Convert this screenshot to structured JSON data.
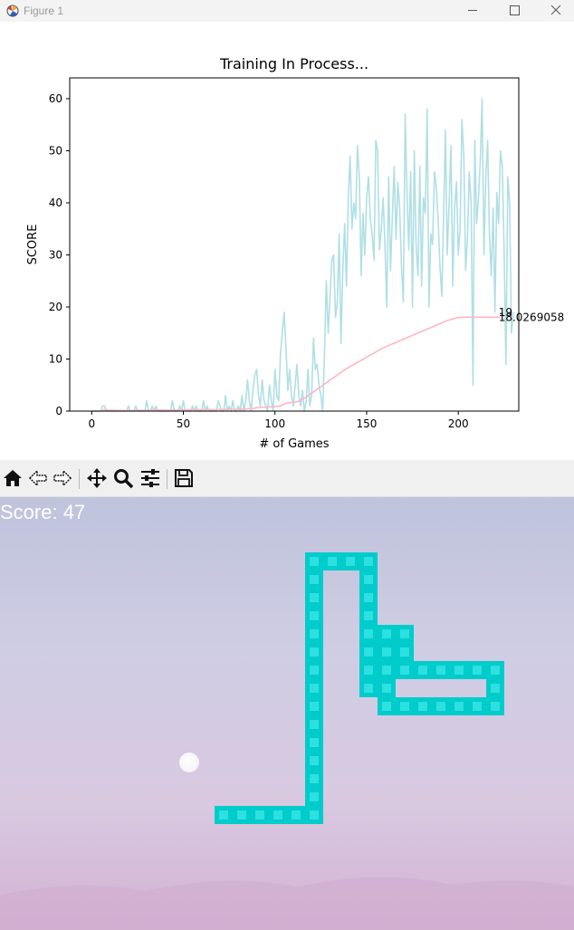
{
  "window": {
    "title": "Figure 1",
    "controls": [
      "minimize-icon",
      "maximize-icon",
      "close-icon"
    ]
  },
  "chart_data": {
    "type": "line",
    "title": "Training In Process...",
    "xlabel": "# of Games",
    "ylabel": "SCORE",
    "xlim": [
      -12,
      233
    ],
    "ylim": [
      0,
      64
    ],
    "xticks": [
      0,
      50,
      100,
      150,
      200
    ],
    "yticks": [
      0,
      10,
      20,
      30,
      40,
      50,
      60
    ],
    "grid": false,
    "legend": "none",
    "series": [
      {
        "role": "scores",
        "color": "#b0dfe5",
        "values": [
          0,
          0,
          0,
          0,
          0,
          0,
          1,
          1,
          0,
          0,
          0,
          0,
          0,
          0,
          0,
          0,
          0,
          0,
          0,
          0,
          1,
          0,
          0,
          0,
          1,
          0,
          0,
          0,
          0,
          0,
          2,
          0,
          0,
          1,
          0,
          1,
          0,
          0,
          0,
          0,
          0,
          0,
          0,
          0,
          2,
          0,
          0,
          0,
          1,
          0,
          2,
          0,
          0,
          0,
          0,
          1,
          0,
          1,
          0,
          0,
          0,
          2,
          0,
          1,
          0,
          0,
          0,
          0,
          0,
          2,
          1,
          0,
          0,
          3,
          0,
          1,
          0,
          2,
          0,
          0,
          1,
          0,
          3,
          0,
          2,
          6,
          2,
          0,
          4,
          7,
          8,
          3,
          1,
          6,
          2,
          1,
          0,
          5,
          2,
          0,
          8,
          3,
          2,
          11,
          15,
          19,
          12,
          4,
          8,
          3,
          1,
          5,
          9,
          3,
          1,
          4,
          0,
          2,
          8,
          1,
          3,
          14,
          8,
          9,
          5,
          3,
          0,
          11,
          25,
          15,
          22,
          29,
          30,
          18,
          21,
          34,
          13,
          27,
          36,
          24,
          41,
          49,
          35,
          40,
          37,
          51,
          45,
          26,
          38,
          30,
          41,
          45,
          37,
          34,
          29,
          52,
          50,
          31,
          35,
          41,
          32,
          20,
          45,
          27,
          37,
          47,
          33,
          44,
          39,
          28,
          21,
          57,
          42,
          31,
          46,
          20,
          50,
          32,
          26,
          47,
          24,
          41,
          38,
          58,
          20,
          34,
          32,
          46,
          43,
          37,
          28,
          22,
          38,
          54,
          30,
          40,
          51,
          24,
          39,
          44,
          30,
          35,
          56,
          49,
          27,
          33,
          46,
          40,
          5,
          52,
          36,
          41,
          48,
          60,
          30,
          45,
          52,
          34,
          26,
          39,
          19,
          42,
          36,
          50,
          47,
          31,
          9,
          45,
          40,
          15,
          19
        ]
      },
      {
        "role": "mean_scores",
        "color": "#ffb6c1",
        "values": [
          0,
          0,
          0,
          0,
          0,
          0,
          0.14,
          0.25,
          0.22,
          0.2,
          0.18,
          0.17,
          0.15,
          0.14,
          0.13,
          0.13,
          0.12,
          0.11,
          0.11,
          0.1,
          0.14,
          0.14,
          0.13,
          0.13,
          0.16,
          0.15,
          0.15,
          0.14,
          0.14,
          0.13,
          0.19,
          0.19,
          0.18,
          0.21,
          0.2,
          0.22,
          0.22,
          0.21,
          0.21,
          0.2,
          0.2,
          0.19,
          0.19,
          0.18,
          0.22,
          0.22,
          0.21,
          0.21,
          0.22,
          0.22,
          0.25,
          0.25,
          0.25,
          0.24,
          0.24,
          0.25,
          0.25,
          0.26,
          0.25,
          0.25,
          0.25,
          0.27,
          0.27,
          0.28,
          0.28,
          0.27,
          0.27,
          0.26,
          0.26,
          0.29,
          0.3,
          0.29,
          0.29,
          0.33,
          0.32,
          0.33,
          0.33,
          0.35,
          0.35,
          0.34,
          0.35,
          0.35,
          0.38,
          0.37,
          0.39,
          0.46,
          0.48,
          0.47,
          0.51,
          0.59,
          0.68,
          0.7,
          0.71,
          0.76,
          0.77,
          0.78,
          0.77,
          0.82,
          0.83,
          0.82,
          0.9,
          0.92,
          0.93,
          1.05,
          1.2,
          1.38,
          1.5,
          1.54,
          1.6,
          1.65,
          1.68,
          1.73,
          1.8,
          1.9,
          2.1,
          2.3,
          2.5,
          2.7,
          2.95,
          3.2,
          3.45,
          3.7,
          3.95,
          4.2,
          4.45,
          4.7,
          4.95,
          5.2,
          5.45,
          5.7,
          5.95,
          6.2,
          6.45,
          6.7,
          6.95,
          7.2,
          7.45,
          7.7,
          7.95,
          8.15,
          8.35,
          8.55,
          8.75,
          8.95,
          9.15,
          9.35,
          9.55,
          9.75,
          9.95,
          10.15,
          10.35,
          10.55,
          10.75,
          10.95,
          11.15,
          11.35,
          11.55,
          11.75,
          11.95,
          12.15,
          12.3,
          12.45,
          12.6,
          12.75,
          12.9,
          13.05,
          13.2,
          13.35,
          13.5,
          13.65,
          13.8,
          13.95,
          14.1,
          14.25,
          14.4,
          14.55,
          14.7,
          14.85,
          15.0,
          15.15,
          15.3,
          15.45,
          15.6,
          15.75,
          15.9,
          16.05,
          16.2,
          16.35,
          16.5,
          16.65,
          16.8,
          16.95,
          17.1,
          17.25,
          17.4,
          17.5,
          17.6,
          17.7,
          17.8,
          17.9,
          17.95,
          18.0,
          18.02,
          18.03,
          18.03,
          18.03,
          18.03,
          18.03,
          18.03,
          18.03,
          18.03,
          18.03,
          18.03,
          18.03,
          18.03,
          18.03,
          18.03,
          18.03,
          18.03,
          18.03,
          18.03,
          18.03,
          18.03,
          18.03
        ]
      }
    ],
    "annotations": [
      {
        "x": 221,
        "y": 19,
        "text": "19"
      },
      {
        "x": 221,
        "y": 18.03,
        "text": "18.0269058"
      }
    ]
  },
  "toolbar": {
    "buttons": [
      {
        "icon": "home-icon"
      },
      {
        "icon": "back-arrow-icon"
      },
      {
        "icon": "forward-arrow-icon"
      },
      {
        "icon": "pan-icon"
      },
      {
        "icon": "zoom-icon"
      },
      {
        "icon": "configure-subplots-icon"
      },
      {
        "icon": "save-icon"
      }
    ]
  },
  "game": {
    "score_label": "Score: 47",
    "snake_color": "#00cccc",
    "food_color": "#ffffff"
  }
}
